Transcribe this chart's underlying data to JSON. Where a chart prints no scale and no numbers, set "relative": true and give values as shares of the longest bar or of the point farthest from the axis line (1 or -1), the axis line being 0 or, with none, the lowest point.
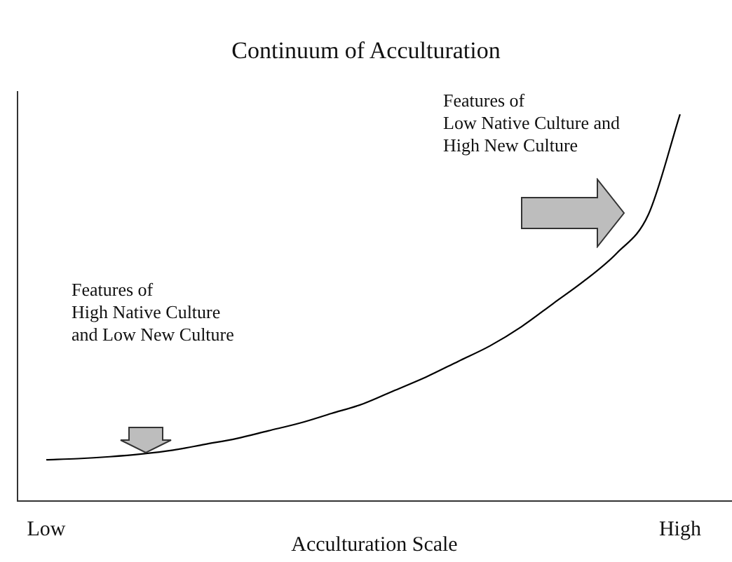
{
  "chart_data": {
    "type": "line",
    "title": "Continuum of Acculturation",
    "xlabel": "Acculturation Scale",
    "relative": true,
    "categories": [
      "Low",
      null,
      null,
      null,
      null,
      null,
      null,
      null,
      null,
      null,
      null,
      null,
      null,
      null,
      null,
      null,
      null,
      null,
      null,
      null,
      "High"
    ],
    "series": [
      {
        "color": "#000000",
        "values": [
          0.105,
          0.108,
          0.113,
          0.12,
          0.13,
          0.145,
          0.16,
          0.18,
          0.2,
          0.225,
          0.25,
          0.285,
          0.32,
          0.36,
          0.4,
          0.45,
          0.51,
          0.57,
          0.64,
          0.74,
          1.0
        ]
      }
    ],
    "annotations": [
      "Features of\nLow Native Culture and\nHigh New Culture",
      "Features of\nHigh Native Culture\nand Low New Culture"
    ],
    "legend": false,
    "marker": "none",
    "line_style": "solid"
  }
}
